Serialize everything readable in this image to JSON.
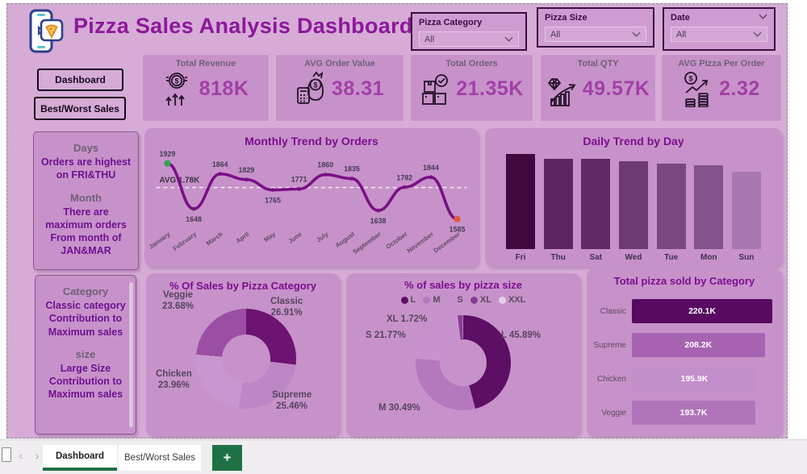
{
  "header": {
    "title": "Pizza Sales Analysis Dashboard",
    "logo": "phone-pizza-chat-logo"
  },
  "slicers": [
    {
      "label": "Pizza Category",
      "value": "All"
    },
    {
      "label": "Pizza Size",
      "value": "All"
    },
    {
      "label": "Date",
      "value": "All"
    }
  ],
  "sidebar": {
    "buttons": [
      {
        "label": "Dashboard"
      },
      {
        "label": "Best/Worst Sales"
      }
    ],
    "insight_days": {
      "heading1": "Days",
      "text1": "Orders are highest on FRI&THU",
      "heading2": "Month",
      "text2": "There are maximum orders From month of JAN&MAR"
    },
    "insight_category": {
      "heading1": "Category",
      "text1": "Classic category Contribution to Maximum sales",
      "heading2": "size",
      "text2": "Large Size Contribution to Maximum sales"
    }
  },
  "kpis": [
    {
      "label": "Total Revenue",
      "value": "818K",
      "icon": "coin-dollar-arrows-icon"
    },
    {
      "label": "AVG Order Value",
      "value": "38.31",
      "icon": "moneybag-calculator-icon"
    },
    {
      "label": "Total Orders",
      "value": "21.35K",
      "icon": "boxes-check-icon"
    },
    {
      "label": "Total QTY",
      "value": "49.57K",
      "icon": "diamond-growth-icon"
    },
    {
      "label": "AVG Pizza Per Order",
      "value": "2.32",
      "icon": "coin-trend-stacks-icon"
    }
  ],
  "chart_data": [
    {
      "id": "monthly_trend",
      "type": "line",
      "title": "Monthly Trend by Orders",
      "x": [
        "January",
        "February",
        "March",
        "April",
        "May",
        "June",
        "July",
        "August",
        "September",
        "October",
        "November",
        "December"
      ],
      "values": [
        1929,
        1648,
        1864,
        1829,
        1765,
        1771,
        1860,
        1835,
        1638,
        1782,
        1844,
        1585
      ],
      "label_positions": [
        "above",
        "below",
        "above",
        "above",
        "below",
        "above",
        "above",
        "above",
        "below",
        "above",
        "above",
        "below"
      ],
      "average_line": {
        "value": 1780,
        "label": "AVG 1.78K"
      },
      "line_color": "#7a0f86",
      "first_point_color": "#2fa351",
      "last_point_color": "#e25840",
      "ylim": [
        1585,
        1929
      ],
      "grid": false
    },
    {
      "id": "daily_trend",
      "type": "bar",
      "title": "Daily Trend by Day",
      "categories": [
        "Fri",
        "Thu",
        "Sat",
        "Wed",
        "Tue",
        "Mon",
        "Sun"
      ],
      "values_relative": [
        1.0,
        0.952,
        0.945,
        0.925,
        0.895,
        0.878,
        0.815
      ],
      "colors": [
        "#42093f",
        "#5c2460",
        "#612a66",
        "#6d3a72",
        "#7a477f",
        "#82538a",
        "#a878b0"
      ],
      "note": "bars carry no value labels; heights estimated relative to Fri"
    },
    {
      "id": "category_share",
      "type": "pie",
      "title": "% Of Sales by Pizza Category",
      "slices": [
        {
          "name": "Classic",
          "pct": 26.91,
          "color": "#6d1371"
        },
        {
          "name": "Supreme",
          "pct": 25.46,
          "color": "#bd86c5"
        },
        {
          "name": "Chicken",
          "pct": 23.96,
          "color": "#c996cf"
        },
        {
          "name": "Veggie",
          "pct": 23.68,
          "color": "#9b4fa4"
        }
      ],
      "donut": true,
      "start_angle_deg": 0
    },
    {
      "id": "size_share",
      "type": "pie",
      "title": "% of sales by pizza size",
      "legend": [
        "L",
        "M",
        "S",
        "XL",
        "XXL"
      ],
      "slices": [
        {
          "name": "L",
          "pct": 45.89,
          "color": "#5c0f63",
          "labeled": true
        },
        {
          "name": "M",
          "pct": 30.49,
          "color": "#b577be",
          "labeled": true
        },
        {
          "name": "S",
          "pct": 21.77,
          "color": "#c892cf",
          "labeled": true
        },
        {
          "name": "XL",
          "pct": 1.72,
          "color": "#8a3b94",
          "labeled": true
        },
        {
          "name": "XXL",
          "pct": 0.13,
          "color": "#e7cdea",
          "labeled": false
        }
      ],
      "donut": true,
      "start_angle_deg": 0
    },
    {
      "id": "total_by_category",
      "type": "bar",
      "orientation": "horizontal",
      "title": "Total pizza sold by Category",
      "categories": [
        "Classic",
        "Supreme",
        "Chicken",
        "Veggie"
      ],
      "values": [
        220100,
        208200,
        195900,
        193700
      ],
      "value_labels": [
        "220.1K",
        "208.2K",
        "195.9K",
        "193.7K"
      ],
      "colors": [
        "#570a5f",
        "#a763b1",
        "#c28fca",
        "#b174ba"
      ]
    }
  ],
  "tabbar": {
    "prev_icon": "‹",
    "next_icon": "›",
    "tabs": [
      {
        "label": "Dashboard",
        "active": true
      },
      {
        "label": "Best/Worst Sales",
        "active": false
      }
    ],
    "add_label": "+"
  }
}
